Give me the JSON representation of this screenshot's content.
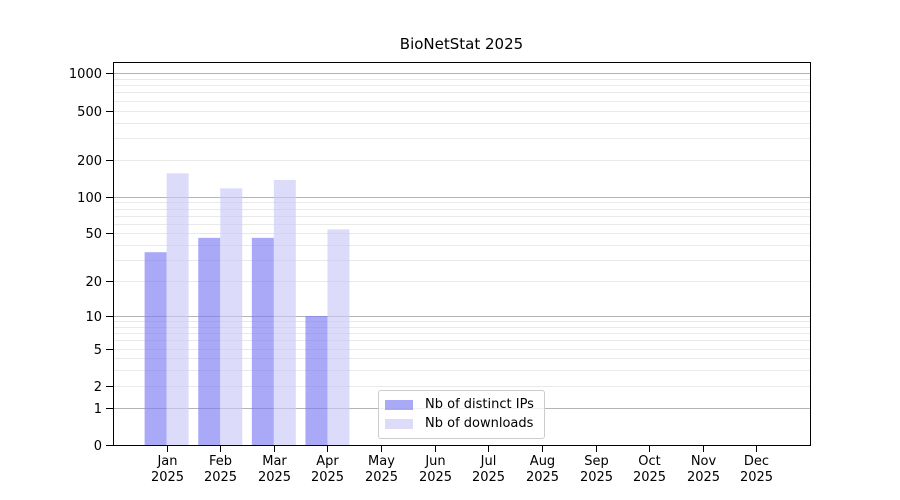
{
  "chart_data": {
    "type": "bar",
    "title": "BioNetStat 2025",
    "categories": [
      "Jan 2025",
      "Feb 2025",
      "Mar 2025",
      "Apr 2025",
      "May 2025",
      "Jun 2025",
      "Jul 2025",
      "Aug 2025",
      "Sep 2025",
      "Oct 2025",
      "Nov 2025",
      "Dec 2025"
    ],
    "series": [
      {
        "name": "Nb of distinct IPs",
        "color": "rgba(123,123,243,0.65)",
        "values": [
          35,
          46,
          46,
          10,
          0,
          0,
          0,
          0,
          0,
          0,
          0,
          0
        ]
      },
      {
        "name": "Nb of downloads",
        "color": "rgba(201,201,247,0.65)",
        "values": [
          155,
          117,
          137,
          54,
          0,
          0,
          0,
          0,
          0,
          0,
          0,
          0
        ]
      }
    ],
    "y_ticks": [
      0,
      1,
      2,
      5,
      10,
      20,
      50,
      100,
      200,
      500,
      1000
    ],
    "y_scale": "log1p",
    "ylim": [
      0,
      1234
    ],
    "xlabel": "",
    "ylabel": "",
    "grid": {
      "on": true,
      "major_at": [
        1,
        10,
        100,
        1000
      ],
      "major_color": "#b4b4b4",
      "minor_color": "#e9e9e9"
    },
    "axis_color": "#000000",
    "legend_position": "lower center"
  }
}
